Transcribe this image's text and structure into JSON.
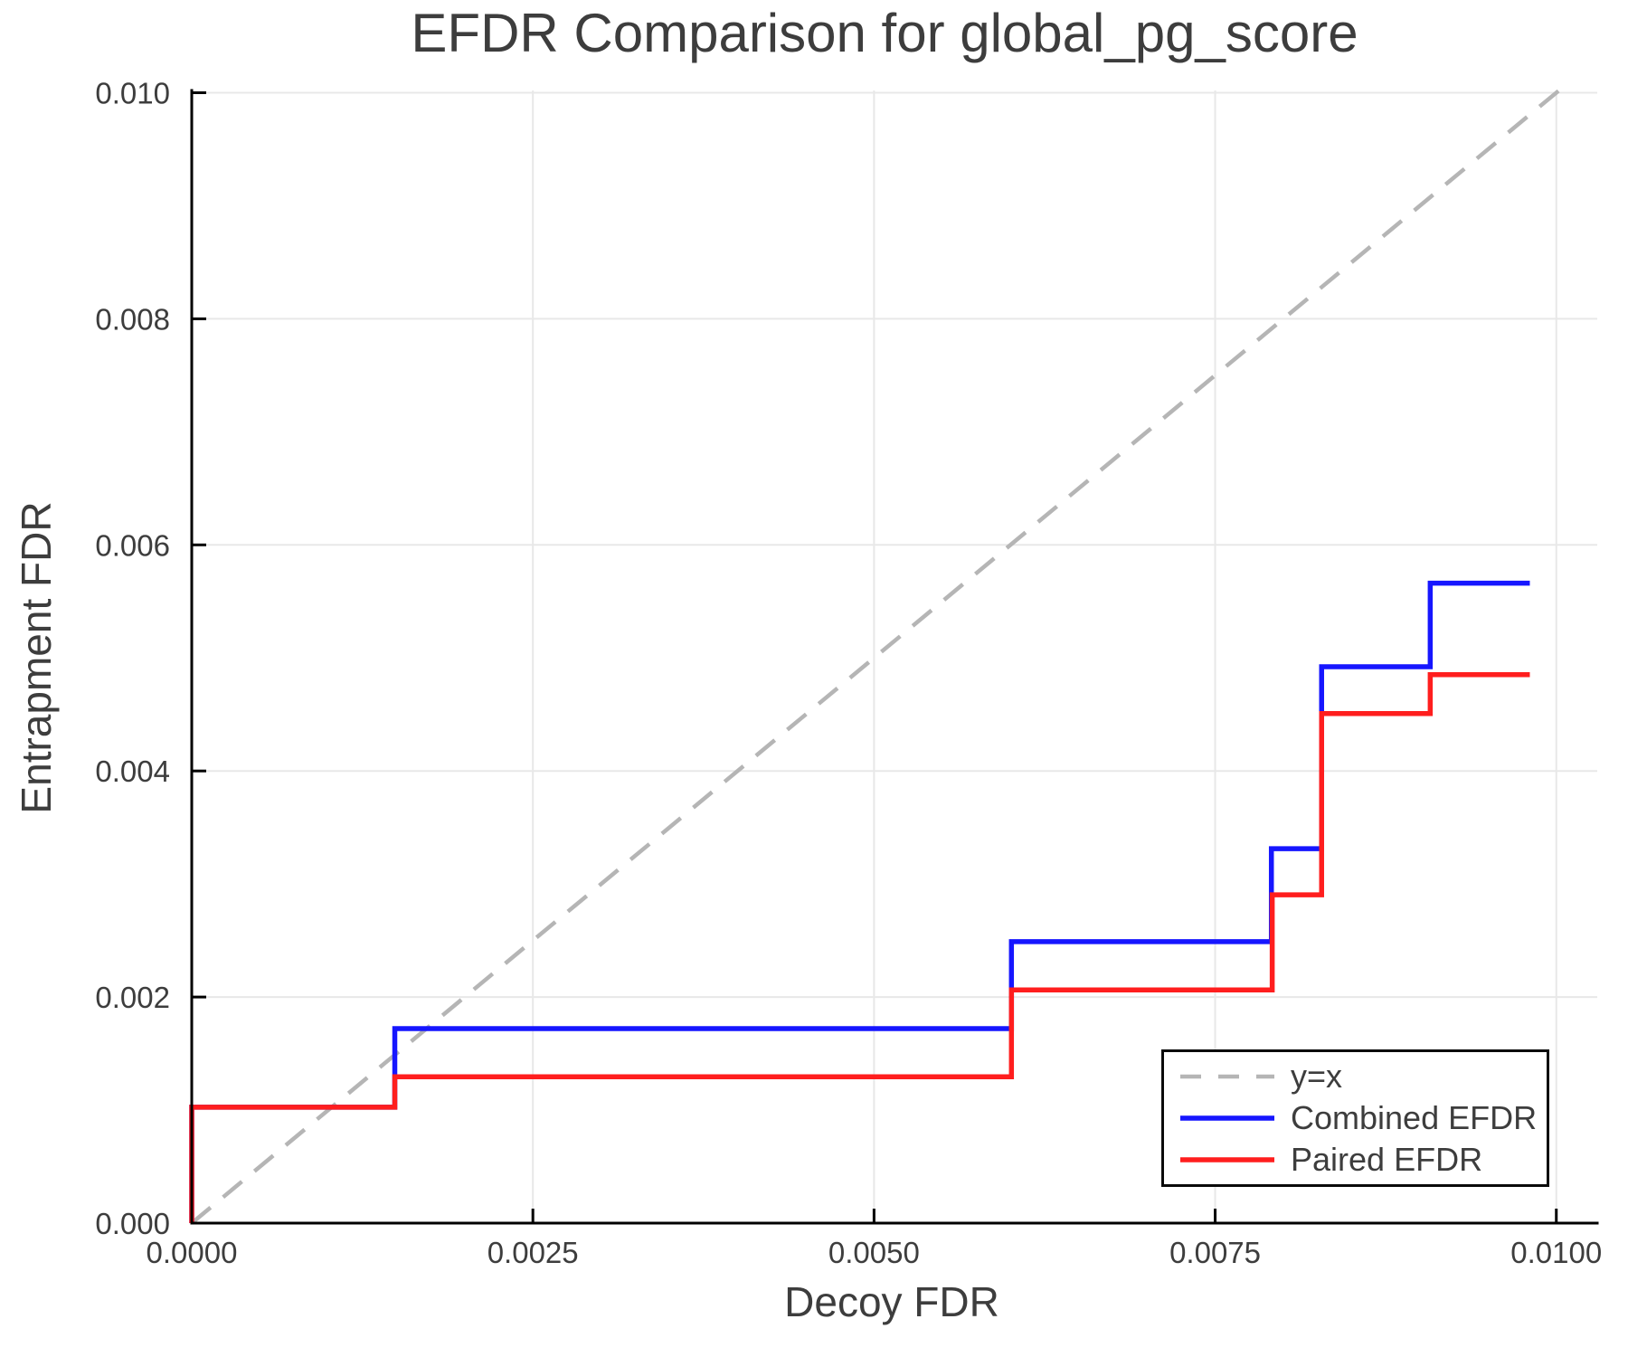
{
  "chart_data": {
    "type": "line",
    "subtype": "step-post",
    "title": "EFDR Comparison for global_pg_score",
    "xlabel": "Decoy FDR",
    "ylabel": "Entrapment FDR",
    "xlim": [
      0,
      0.0103
    ],
    "ylim": [
      0,
      0.01002
    ],
    "grid": true,
    "legend_position": "lower right",
    "xticks": {
      "values": [
        0,
        0.0025,
        0.005,
        0.0075,
        0.01
      ],
      "labels": [
        "0.0000",
        "0.0025",
        "0.0050",
        "0.0075",
        "0.0100"
      ]
    },
    "yticks": {
      "values": [
        0,
        0.002,
        0.004,
        0.006,
        0.008,
        0.01
      ],
      "labels": [
        "0.000",
        "0.002",
        "0.004",
        "0.006",
        "0.008",
        "0.010"
      ]
    },
    "reference_line": {
      "label": "y=x",
      "style": "dashed",
      "color": "#b5b5b5",
      "from": [
        0,
        0
      ],
      "to": [
        0.01,
        0.01
      ]
    },
    "series": [
      {
        "name": "Combined EFDR",
        "color": "#1616ff",
        "steps": [
          {
            "x": 0.0,
            "y": 0.001025
          },
          {
            "x": 0.001488,
            "y": 0.001721
          },
          {
            "x": 0.006007,
            "y": 0.00249
          },
          {
            "x": 0.007912,
            "y": 0.003312
          },
          {
            "x": 0.00828,
            "y": 0.004922
          },
          {
            "x": 0.009076,
            "y": 0.005661
          }
        ],
        "end_x": 0.009806
      },
      {
        "name": "Paired EFDR",
        "color": "#ff1e1e",
        "steps": [
          {
            "x": 0.0,
            "y": 0.001025
          },
          {
            "x": 0.001488,
            "y": 0.001295
          },
          {
            "x": 0.006007,
            "y": 0.002063
          },
          {
            "x": 0.007918,
            "y": 0.002904
          },
          {
            "x": 0.00828,
            "y": 0.004508
          },
          {
            "x": 0.009076,
            "y": 0.004852
          }
        ],
        "end_x": 0.009806
      }
    ],
    "colors": {
      "grid": "#e8e8e8",
      "spine": "#000000",
      "text": "#3d3d3d",
      "background": "#ffffff"
    }
  }
}
